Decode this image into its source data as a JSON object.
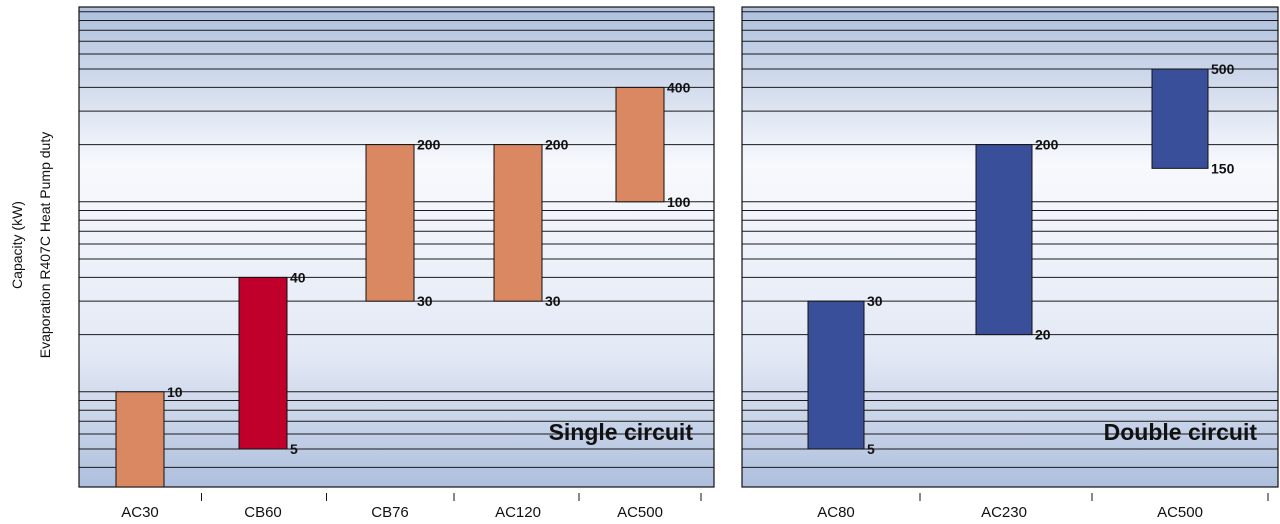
{
  "ylabel_line1": "Capacity (kW)",
  "ylabel_line2": "Evaporation R407C Heat Pump duty",
  "colors": {
    "single_bar": "#d98862",
    "highlight_bar": "#c0002a",
    "double_bar": "#3a4f9a",
    "bg_dark": "#aebfdd",
    "bg_light": "#f7f9fd",
    "grid": "#1a1a1a"
  },
  "chart_data": [
    {
      "type": "bar",
      "title": "Single circuit",
      "categories": [
        "AC30",
        "CB60",
        "CB76",
        "AC120",
        "AC500"
      ],
      "y_scale": "log",
      "grid": true,
      "series": [
        {
          "ranges": [
            {
              "category": "AC30",
              "high": 10,
              "high_label": "10"
            },
            {
              "category": "CB60",
              "low": 5,
              "high": 40,
              "low_label": "5",
              "high_label": "40",
              "highlight": true
            },
            {
              "category": "CB76",
              "low": 30,
              "high": 200,
              "low_label": "30",
              "high_label": "200"
            },
            {
              "category": "AC120",
              "low": 30,
              "high": 200,
              "low_label": "30",
              "high_label": "200"
            },
            {
              "category": "AC500",
              "low": 100,
              "high": 400,
              "low_label": "100",
              "high_label": "400"
            }
          ]
        }
      ]
    },
    {
      "type": "bar",
      "title": "Double circuit",
      "categories": [
        "AC80",
        "AC230",
        "AC500"
      ],
      "y_scale": "log",
      "grid": true,
      "series": [
        {
          "ranges": [
            {
              "category": "AC80",
              "low": 5,
              "high": 30,
              "low_label": "5",
              "high_label": "30"
            },
            {
              "category": "AC230",
              "low": 20,
              "high": 200,
              "low_label": "20",
              "high_label": "200"
            },
            {
              "category": "AC500",
              "low": 150,
              "high": 500,
              "low_label": "150",
              "high_label": "500"
            }
          ]
        }
      ]
    }
  ]
}
